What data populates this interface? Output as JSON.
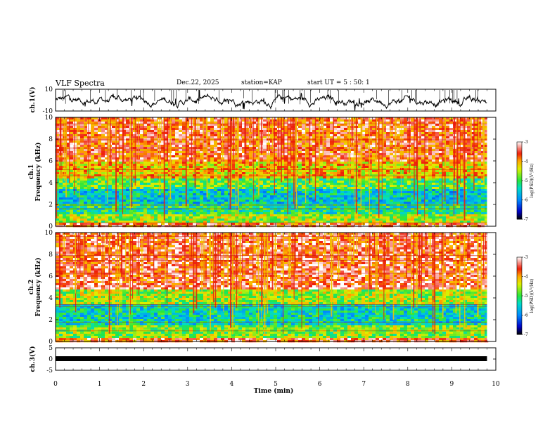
{
  "header": {
    "title": "VLF Spectra",
    "date": "Dec.22, 2025",
    "station": "station=KAP",
    "start": "start  UT  =  5 : 50: 1"
  },
  "chart_data": [
    {
      "type": "line",
      "name": "ch1-waveform",
      "ylabel": "ch.1(V)",
      "ylim": [
        -10,
        10
      ],
      "yticks": [
        "10",
        "-10"
      ],
      "xlim": [
        0,
        10
      ],
      "data_extent": 9.8
    },
    {
      "type": "heatmap",
      "name": "ch1-spectrogram",
      "ylabel": "Frequency (kHz)",
      "channel_label": "ch.1",
      "ylim": [
        0,
        10
      ],
      "yticks": [
        "0",
        "2",
        "4",
        "6",
        "8",
        "10"
      ],
      "xlim": [
        0,
        10
      ],
      "data_extent": 9.8,
      "bands_khz": [
        {
          "from": 0,
          "to": 0.5,
          "level": -3.6
        },
        {
          "from": 0.5,
          "to": 1.2,
          "level": -4.6
        },
        {
          "from": 1.2,
          "to": 2.2,
          "level": -5.2
        },
        {
          "from": 2.2,
          "to": 3.6,
          "level": -5.5
        },
        {
          "from": 3.6,
          "to": 4.5,
          "level": -4.9
        },
        {
          "from": 4.5,
          "to": 6.0,
          "level": -4.2
        },
        {
          "from": 6.0,
          "to": 10,
          "level": -3.6
        }
      ],
      "colorbar": {
        "label": "log(PSD)(V²/Hz)",
        "range": [
          -7,
          -3
        ],
        "ticks": [
          "-3",
          "-4",
          "-5",
          "-6",
          "-7"
        ]
      }
    },
    {
      "type": "heatmap",
      "name": "ch2-spectrogram",
      "ylabel": "Frequency (kHz)",
      "channel_label": "ch.2",
      "ylim": [
        0,
        10
      ],
      "yticks": [
        "0",
        "2",
        "4",
        "6",
        "8",
        "10"
      ],
      "xlim": [
        0,
        10
      ],
      "data_extent": 9.8,
      "bands_khz": [
        {
          "from": 0,
          "to": 0.5,
          "level": -3.6
        },
        {
          "from": 0.5,
          "to": 1.5,
          "level": -4.7
        },
        {
          "from": 1.5,
          "to": 3.5,
          "level": -5.4
        },
        {
          "from": 3.5,
          "to": 4.8,
          "level": -4.6
        },
        {
          "from": 4.8,
          "to": 5.2,
          "level": -3.3
        },
        {
          "from": 5.2,
          "to": 10,
          "level": -3.5
        }
      ],
      "colorbar": {
        "label": "log(PSD)(V²/Hz)",
        "range": [
          -7,
          -3
        ],
        "ticks": [
          "-3",
          "-4",
          "-5",
          "-6",
          "-7"
        ]
      }
    },
    {
      "type": "line",
      "name": "ch3-waveform",
      "ylabel": "ch.3(V)",
      "ylim": [
        -5,
        5
      ],
      "yticks": [
        "5",
        "0",
        "-5"
      ],
      "xlim": [
        0,
        10
      ],
      "data_extent": 9.8,
      "xticks": [
        "0",
        "1",
        "2",
        "3",
        "4",
        "5",
        "6",
        "7",
        "8",
        "9",
        "10"
      ],
      "xlabel": "Time (min)"
    }
  ]
}
